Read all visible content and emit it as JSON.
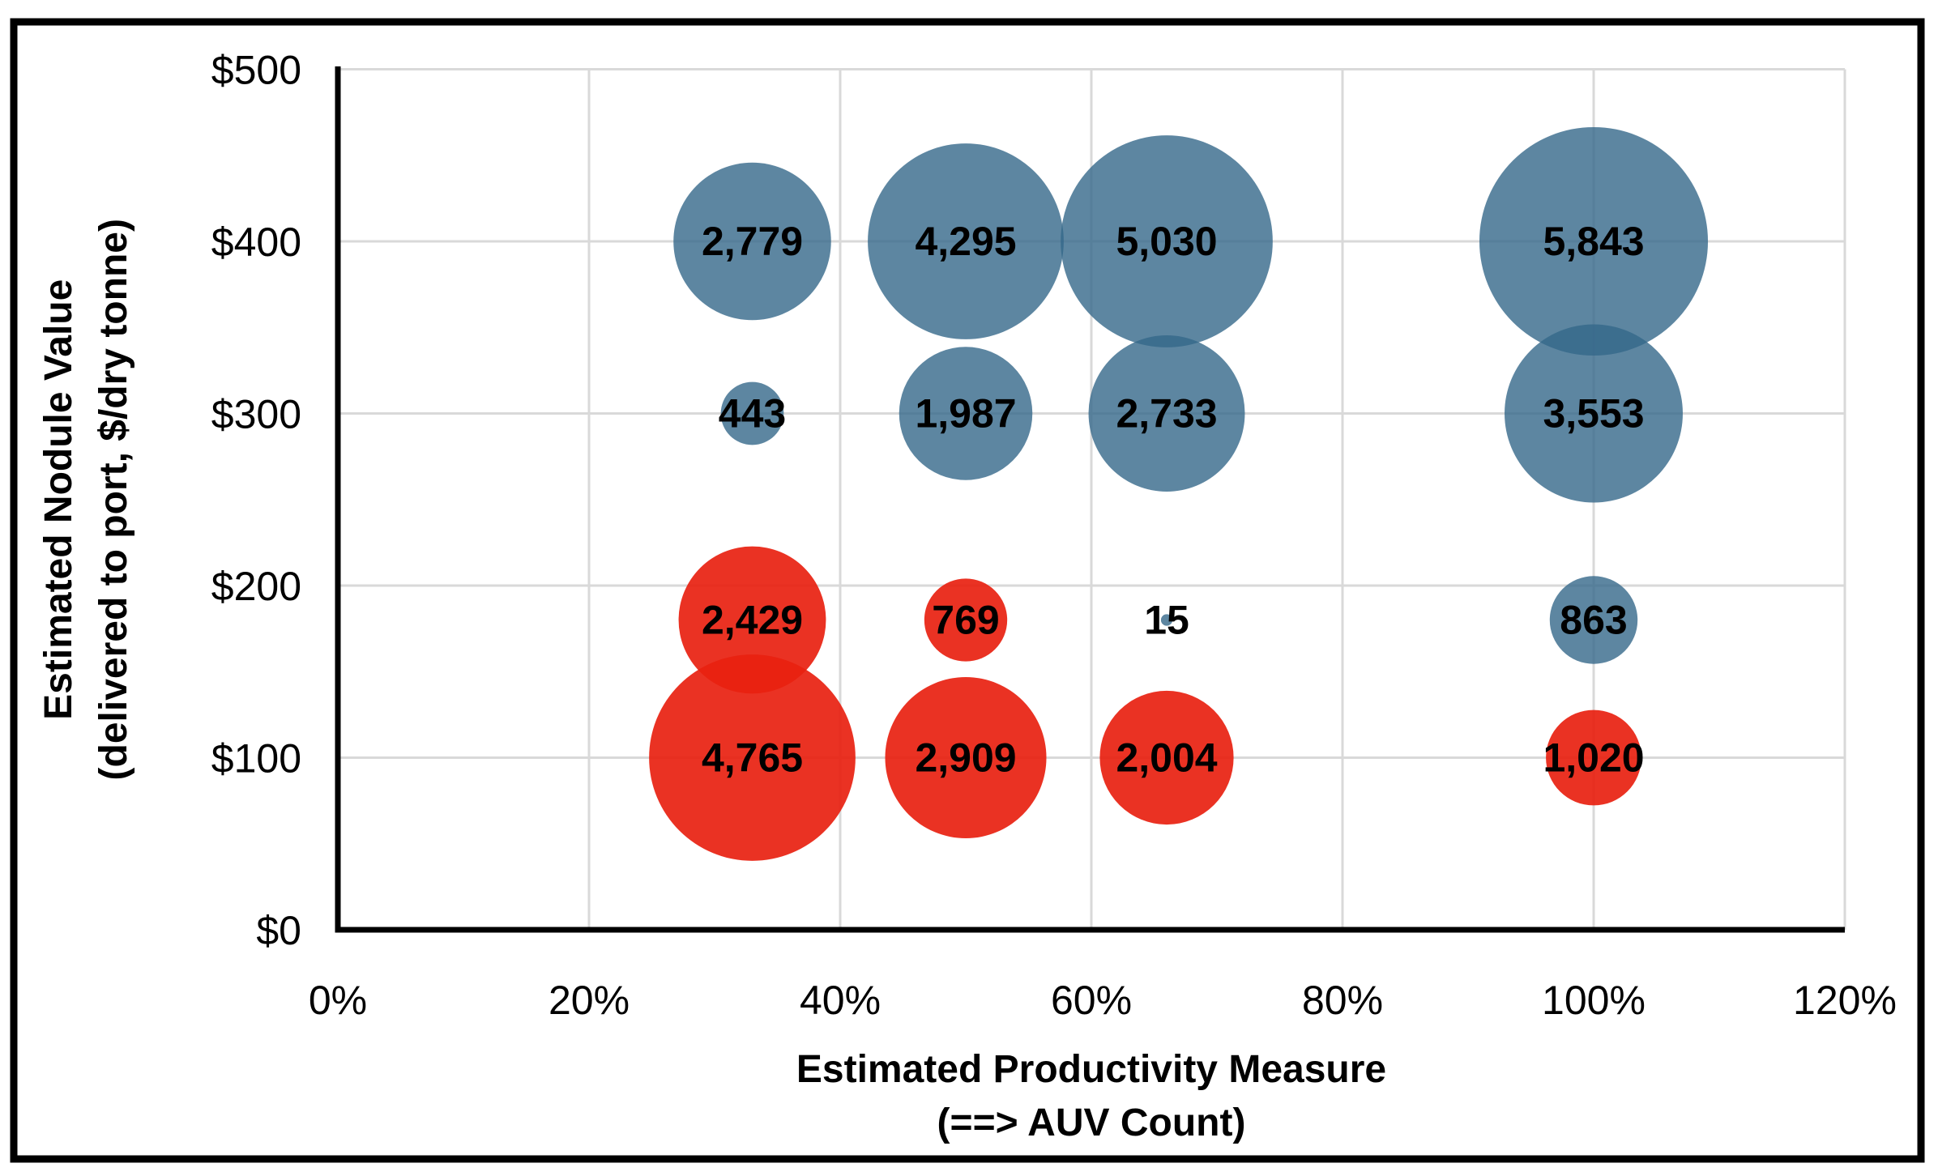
{
  "chart_data": {
    "type": "scatter",
    "subtype": "bubble",
    "title": "",
    "xlabel_line1": "Estimated Productivity Measure",
    "xlabel_line2": "(==> AUV Count)",
    "ylabel_line1": "Estimated Nodule Value",
    "ylabel_line2": "(delivered to port, $/dry tonne)",
    "xlim": [
      0,
      120
    ],
    "ylim": [
      0,
      500
    ],
    "grid": true,
    "legend": "none",
    "x_ticks": [
      {
        "value": 0,
        "label": "0%"
      },
      {
        "value": 20,
        "label": "20%"
      },
      {
        "value": 40,
        "label": "40%"
      },
      {
        "value": 60,
        "label": "60%"
      },
      {
        "value": 80,
        "label": "80%"
      },
      {
        "value": 100,
        "label": "100%"
      },
      {
        "value": 120,
        "label": "120%"
      }
    ],
    "y_ticks": [
      {
        "value": 0,
        "label": "$0"
      },
      {
        "value": 100,
        "label": "$100"
      },
      {
        "value": 200,
        "label": "$200"
      },
      {
        "value": 300,
        "label": "$300"
      },
      {
        "value": 400,
        "label": "$400"
      },
      {
        "value": 500,
        "label": "$500"
      }
    ],
    "series": [
      {
        "name": "blue",
        "color": "#35688A",
        "fill_opacity": 0.8,
        "points": [
          {
            "x": 33,
            "y": 400,
            "value": 2779,
            "label": "2,779"
          },
          {
            "x": 50,
            "y": 400,
            "value": 4295,
            "label": "4,295"
          },
          {
            "x": 66,
            "y": 400,
            "value": 5030,
            "label": "5,030"
          },
          {
            "x": 100,
            "y": 400,
            "value": 5843,
            "label": "5,843"
          },
          {
            "x": 33,
            "y": 300,
            "value": 443,
            "label": "443"
          },
          {
            "x": 50,
            "y": 300,
            "value": 1987,
            "label": "1,987"
          },
          {
            "x": 66,
            "y": 300,
            "value": 2733,
            "label": "2,733"
          },
          {
            "x": 100,
            "y": 300,
            "value": 3553,
            "label": "3,553"
          },
          {
            "x": 66,
            "y": 180,
            "value": 15,
            "label": "15"
          },
          {
            "x": 100,
            "y": 180,
            "value": 863,
            "label": "863"
          }
        ]
      },
      {
        "name": "red",
        "color": "#E82110",
        "fill_opacity": 0.92,
        "points": [
          {
            "x": 33,
            "y": 180,
            "value": 2429,
            "label": "2,429"
          },
          {
            "x": 50,
            "y": 180,
            "value": 769,
            "label": "769"
          },
          {
            "x": 33,
            "y": 100,
            "value": 4765,
            "label": "4,765"
          },
          {
            "x": 50,
            "y": 100,
            "value": 2909,
            "label": "2,909"
          },
          {
            "x": 66,
            "y": 100,
            "value": 2004,
            "label": "2,004"
          },
          {
            "x": 100,
            "y": 100,
            "value": 1020,
            "label": "1,020"
          }
        ]
      }
    ],
    "colors": {
      "gridline": "#D9D9D9",
      "axis": "#000000",
      "label_text": "#000000",
      "frame_border": "#000000",
      "background": "#FFFFFF"
    }
  }
}
